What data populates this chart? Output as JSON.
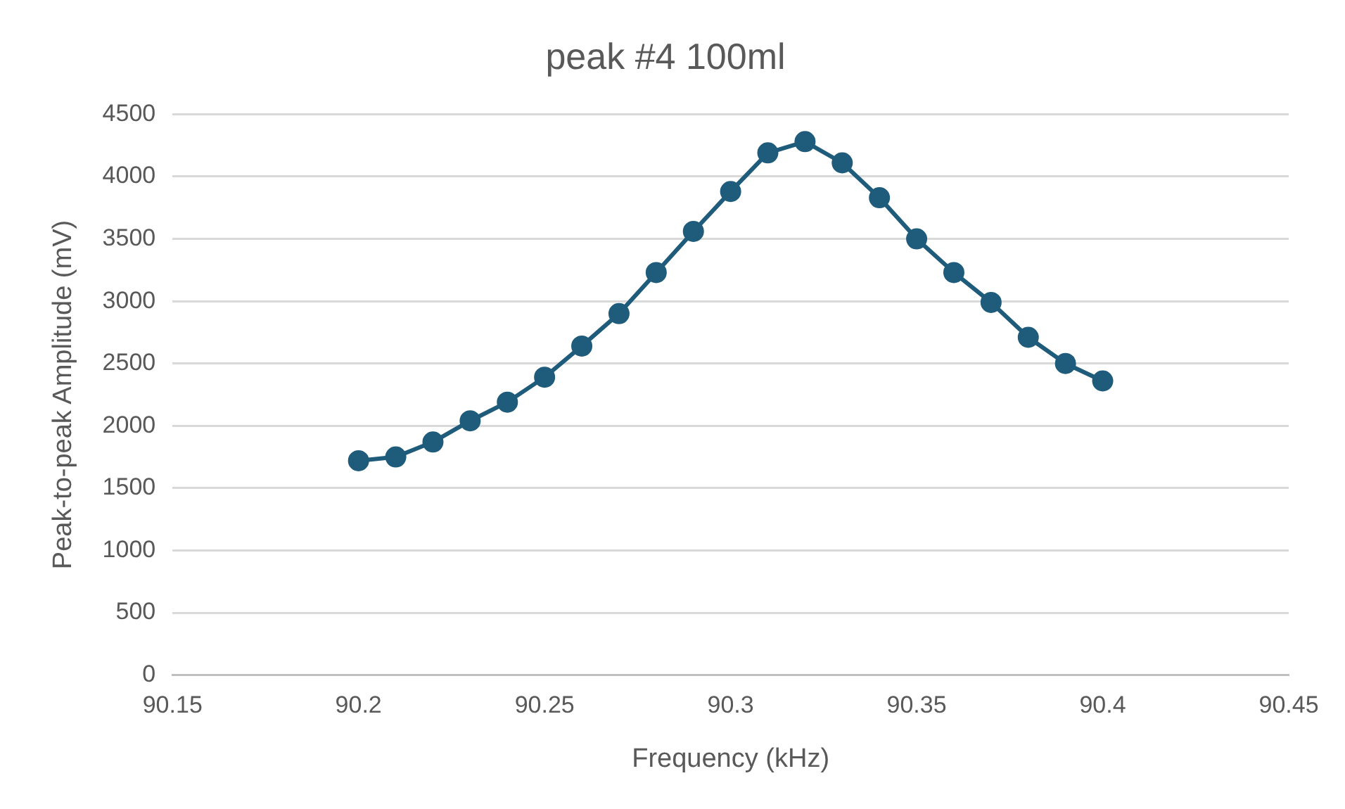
{
  "chart_data": {
    "type": "line",
    "title": "peak #4 100ml",
    "xlabel": "Frequency (kHz)",
    "ylabel": "Peak-to-peak Amplitude (mV)",
    "x": [
      90.2,
      90.21,
      90.22,
      90.23,
      90.24,
      90.25,
      90.26,
      90.27,
      90.28,
      90.29,
      90.3,
      90.31,
      90.32,
      90.33,
      90.34,
      90.35,
      90.36,
      90.37,
      90.38,
      90.39,
      90.4
    ],
    "series": [
      {
        "color": "#1f5b7a",
        "values": [
          1720,
          1750,
          1870,
          2040,
          2190,
          2390,
          2640,
          2900,
          3230,
          3560,
          3880,
          4190,
          4280,
          4110,
          3830,
          3500,
          3230,
          2990,
          2710,
          2500,
          2360
        ]
      }
    ],
    "xlim": [
      90.15,
      90.45
    ],
    "xticks": [
      90.15,
      90.2,
      90.25,
      90.3,
      90.35,
      90.4,
      90.45
    ],
    "ylim": [
      0,
      4500
    ],
    "yticks": [
      0,
      500,
      1000,
      1500,
      2000,
      2500,
      3000,
      3500,
      4000,
      4500
    ],
    "grid": "y",
    "legend": false,
    "marker": "circle",
    "line_style": "solid"
  }
}
